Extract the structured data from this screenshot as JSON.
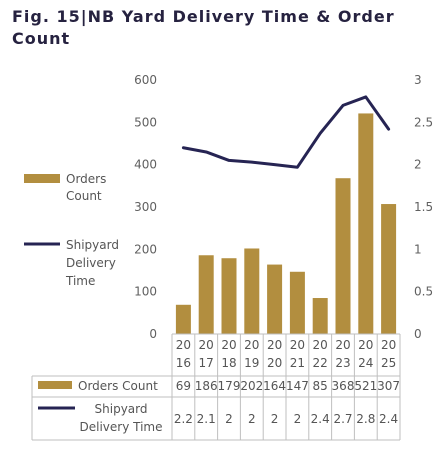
{
  "title_lines": [
    "Fig. 15|NB Yard Delivery Time & Order",
    "Count"
  ],
  "colors": {
    "bar": "#B28E3F",
    "line": "#262453",
    "title": "#262240",
    "grid": "#D9D9D9",
    "table_border": "#BFBFBF"
  },
  "chart_data": {
    "type": "bar+line",
    "title": "Fig. 15|NB Yard Delivery Time & Order Count",
    "categories": [
      [
        "20",
        "16"
      ],
      [
        "20",
        "17"
      ],
      [
        "20",
        "18"
      ],
      [
        "20",
        "19"
      ],
      [
        "20",
        "20"
      ],
      [
        "20",
        "21"
      ],
      [
        "20",
        "22"
      ],
      [
        "20",
        "23"
      ],
      [
        "20",
        "24"
      ],
      [
        "20",
        "25"
      ]
    ],
    "series": [
      {
        "name": "Orders Count",
        "kind": "bar",
        "axis": "left",
        "values": [
          69,
          186,
          179,
          202,
          164,
          147,
          85,
          368,
          521,
          307
        ],
        "table_labels": [
          "69",
          "186",
          "179",
          "202",
          "164",
          "147",
          "85",
          "368",
          "521",
          "307"
        ],
        "legend_lines": [
          "Orders",
          "Count"
        ]
      },
      {
        "name": "Shipyard Delivery Time",
        "kind": "line",
        "axis": "right",
        "values": [
          2.2,
          2.15,
          2.05,
          2.03,
          2.0,
          1.97,
          2.37,
          2.7,
          2.8,
          2.42
        ],
        "table_labels": [
          "2.2",
          "2.1",
          "2",
          "2",
          "2",
          "2",
          "2.4",
          "2.7",
          "2.8",
          "2.4"
        ],
        "legend_lines": [
          "Shipyard",
          "Delivery",
          "Time"
        ]
      }
    ],
    "y_left": {
      "min": 0,
      "max": 600,
      "step": 100,
      "ticks": [
        "0",
        "100",
        "200",
        "300",
        "400",
        "500",
        "600"
      ]
    },
    "y_right": {
      "min": 0,
      "max": 3,
      "step": 0.5,
      "ticks": [
        "0",
        "0.5",
        "1",
        "1.5",
        "2",
        "2.5",
        "3"
      ]
    },
    "grid": false,
    "legend_position": "left",
    "data_table": {
      "row_labels": [
        "Orders Count",
        [
          "Shipyard",
          "Delivery Time"
        ]
      ]
    }
  }
}
